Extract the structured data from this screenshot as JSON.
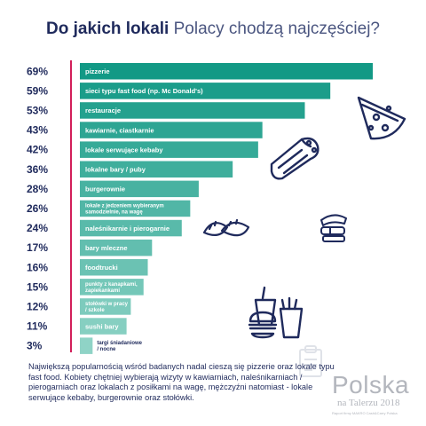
{
  "title": {
    "bold": "Do jakich lokali",
    "light": "Polacy chodzą najczęściej?"
  },
  "colors": {
    "bar_dark": "#129985",
    "bar_light": "#8fd3c6",
    "axis_line": "#d21f5a",
    "text_navy": "#1f2a5c"
  },
  "chart_data": {
    "type": "bar",
    "orientation": "horizontal",
    "categories": [
      "pizzerie",
      "sieci typu fast food (np. Mc Donald's)",
      "restauracje",
      "kawiarnie, ciastkarnie",
      "lokale serwujące kebaby",
      "lokalne bary / puby",
      "burgerownie",
      "lokale z jedzeniem wybieranym samodzielnie, na wagę",
      "naleśnikarnie i pierogarnie",
      "bary mleczne",
      "foodtrucki",
      "punkty z kanapkami, zapiekankami",
      "stołówki w pracy / szkole",
      "sushi bary",
      "targi śniadaniowe / nocne"
    ],
    "category_lines": [
      [
        "pizzerie"
      ],
      [
        "sieci typu fast food (np. Mc Donald's)"
      ],
      [
        "restauracje"
      ],
      [
        "kawiarnie, ciastkarnie"
      ],
      [
        "lokale serwujące kebaby"
      ],
      [
        "lokalne bary / puby"
      ],
      [
        "burgerownie"
      ],
      [
        "lokale z jedzeniem wybieranym",
        "samodzielnie, na wagę"
      ],
      [
        "naleśnikarnie i pierogarnie"
      ],
      [
        "bary mleczne"
      ],
      [
        "foodtrucki"
      ],
      [
        "punkty z kanapkami,",
        "zapiekankami"
      ],
      [
        "stołówki w pracy",
        "/ szkole"
      ],
      [
        "sushi bary"
      ],
      [
        "targi śniadaniowe",
        "/ nocne"
      ]
    ],
    "values": [
      69,
      59,
      53,
      43,
      42,
      36,
      28,
      26,
      24,
      17,
      16,
      15,
      12,
      11,
      3
    ],
    "value_labels": [
      "69%",
      "59%",
      "53%",
      "43%",
      "42%",
      "36%",
      "28%",
      "26%",
      "24%",
      "17%",
      "16%",
      "15%",
      "12%",
      "11%",
      "3%"
    ],
    "unit": "%",
    "xlim": [
      0,
      69
    ],
    "grid": false,
    "legend": "none"
  },
  "illustrations": [
    "pizza-icon",
    "kebab-wrap-icon",
    "dumplings-icon",
    "sushi-icon",
    "fast-food-icon",
    "clipboard-icon"
  ],
  "description": "Największą popularnością wśród badanych nadal cieszą się pizzerie oraz lokale typu fast food. Kobiety chętniej wybierają wizyty w kawiarniach, naleśnikarniach / pierogarniach oraz lokalach z posiłkami na wagę, mężczyźni natomiast - lokale serwujące kebaby, burgerownie oraz stołówki.",
  "logo": {
    "main": "Polska",
    "sub": "na Talerzu 2018",
    "note": "Raport firmy MAKRO Cash&Carry Polska"
  }
}
